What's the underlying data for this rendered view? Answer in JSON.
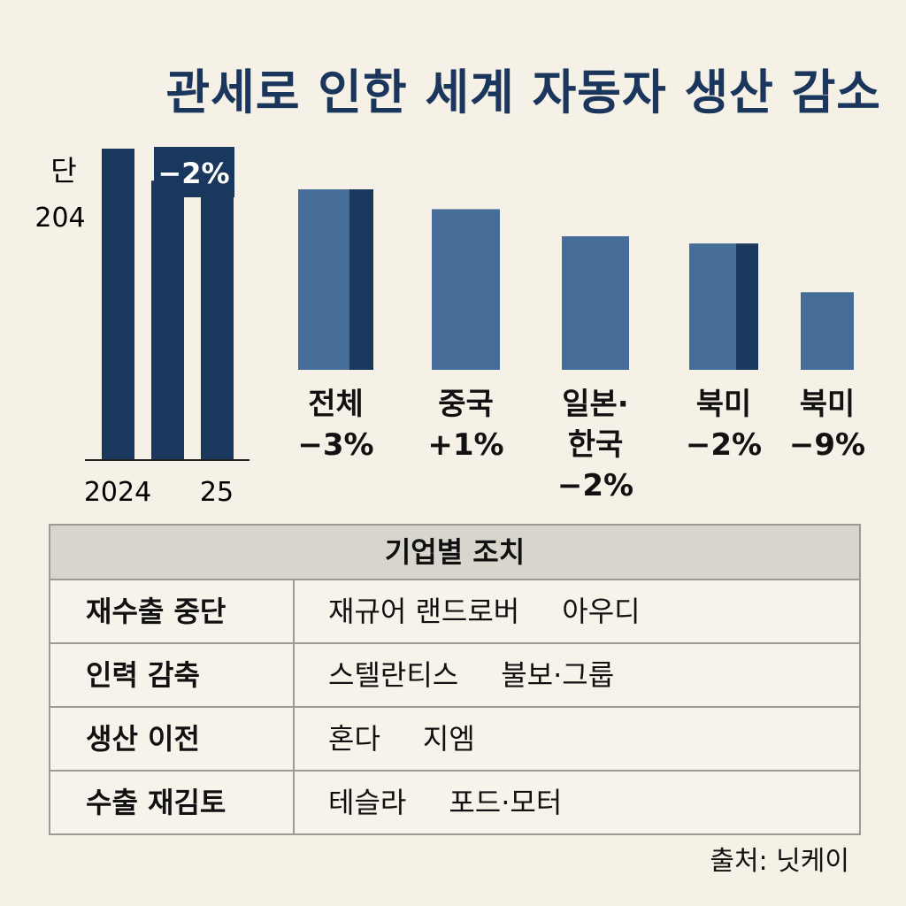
{
  "title": "관세로 인한 세계 자동자 생산 감소",
  "chart_data": [
    {
      "type": "bar",
      "categories": [
        "2024",
        "25",
        ""
      ],
      "values": [
        204,
        183,
        182
      ],
      "unit_label": "단",
      "y_tick_label": "204",
      "annotation": "−2%",
      "x_labels": [
        "2024",
        "25"
      ]
    },
    {
      "type": "bar",
      "categories": [
        "전체",
        "중국",
        "일본·한국",
        "북미",
        "북미"
      ],
      "category_lines": [
        [
          "전체"
        ],
        [
          "중국"
        ],
        [
          "일본·",
          "한국"
        ],
        [
          "북미"
        ],
        [
          "북미"
        ]
      ],
      "pct_labels": [
        "−3%",
        "+1%",
        "−2%",
        "−2%",
        "−9%"
      ],
      "values": [
        100,
        89,
        74,
        70,
        43
      ],
      "split_highlight": [
        true,
        false,
        false,
        true,
        false
      ]
    }
  ],
  "colors": {
    "navy": "#1a375e",
    "steel": "#466d97",
    "background": "#f6f1e6",
    "title": "#1b365d"
  },
  "table": {
    "header": "기업별 조치",
    "rows": [
      {
        "action": "재수출 중단",
        "companies": [
          "재규어 랜드로버",
          "아우디"
        ]
      },
      {
        "action": "인력 감축",
        "companies": [
          "스텔란티스",
          "불보·그룹"
        ]
      },
      {
        "action": "생산 이전",
        "companies": [
          "혼다",
          "지엠"
        ]
      },
      {
        "action": "수출 재김토",
        "companies": [
          "테슬라",
          "포드·모터"
        ]
      }
    ]
  },
  "source": "출처: 닛케이"
}
